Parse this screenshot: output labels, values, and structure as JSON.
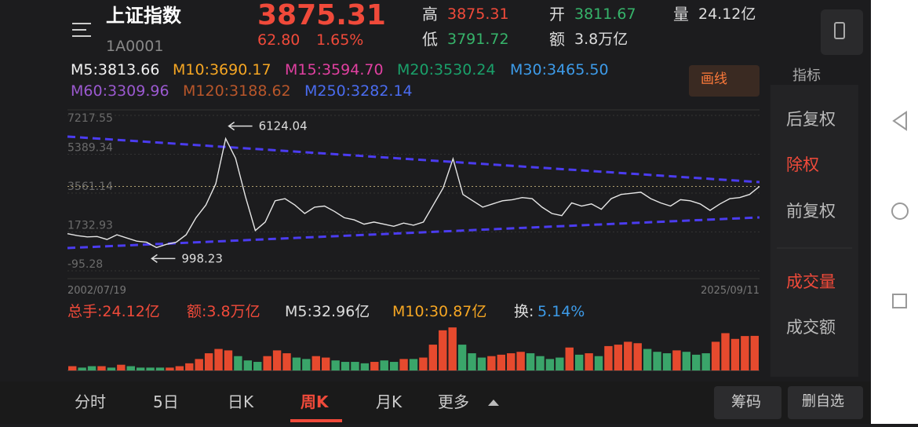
{
  "header": {
    "name": "上证指数",
    "code": "1A0001",
    "price": "3875.31",
    "change": "62.80",
    "change_pct": "1.65%",
    "high_label": "高",
    "high": "3875.31",
    "low_label": "低",
    "low": "3791.72",
    "open_label": "开",
    "open": "3811.67",
    "amount_label": "额",
    "amount": "3.8万亿",
    "volume_label": "量",
    "volume": "24.12亿"
  },
  "ma": [
    "M5:3813.66",
    "M10:3690.17",
    "M15:3594.70",
    "M20:3530.24",
    "M30:3465.50",
    "M60:3309.96",
    "M120:3188.62",
    "M250:3282.14"
  ],
  "draw_button": "画线",
  "indicator_button": "指标",
  "price_chart": {
    "type": "line",
    "ylim": [
      -95.28,
      7217.55
    ],
    "yticks": [
      7217.55,
      5389.34,
      3561.14,
      1732.93,
      -95.28
    ],
    "x_start": "2002/07/19",
    "x_end": "2025/09/11",
    "grid": true,
    "color": "#e6e6e6",
    "annotations": [
      {
        "text": "6124.04",
        "index": 16
      },
      {
        "text": "998.23",
        "index": 9
      }
    ],
    "values": [
      1650,
      1560,
      1500,
      1520,
      1380,
      1600,
      1450,
      1300,
      1250,
      998.23,
      1150,
      1250,
      1600,
      2400,
      3000,
      4000,
      6124.04,
      5200,
      3400,
      1800,
      2200,
      3200,
      3300,
      3000,
      2600,
      2900,
      2950,
      2700,
      2400,
      2300,
      2100,
      2200,
      2100,
      2000,
      2150,
      2050,
      2200,
      3000,
      3800,
      5178,
      3500,
      3200,
      2900,
      3050,
      3200,
      3250,
      3350,
      3300,
      2900,
      2600,
      2500,
      3100,
      2950,
      3050,
      2800,
      3300,
      3500,
      3550,
      3600,
      3300,
      3100,
      2950,
      3250,
      3200,
      3050,
      2750,
      3050,
      3300,
      3350,
      3500,
      3875.31
    ],
    "trendlines": {
      "color": "#4b3cf0",
      "values": [
        [
          6220,
          4078
        ],
        [
          976,
          2417
        ]
      ]
    },
    "last_price": 3875.31
  },
  "volume_header": [
    "总手:24.12亿",
    "额:3.8万亿",
    "M5:32.96亿",
    "M10:30.87亿",
    "换:",
    "5.14%"
  ],
  "volume_chart": {
    "type": "bar",
    "ylim": [
      0,
      35
    ],
    "values": [
      3,
      2,
      3,
      3,
      2,
      4,
      3,
      2,
      2,
      2,
      2,
      3,
      5,
      8,
      12,
      15,
      14,
      10,
      7,
      6,
      10,
      14,
      12,
      9,
      8,
      10,
      9,
      7,
      6,
      6,
      5,
      6,
      7,
      6,
      8,
      8,
      9,
      18,
      28,
      30,
      18,
      12,
      9,
      10,
      11,
      12,
      13,
      12,
      10,
      8,
      9,
      16,
      11,
      12,
      10,
      17,
      18,
      20,
      19,
      15,
      13,
      12,
      14,
      13,
      11,
      12,
      20,
      26,
      22,
      24,
      24.12
    ]
  },
  "side_menu": [
    "后复权",
    "除权",
    "前复权",
    "成交量",
    "成交额"
  ],
  "tabs": [
    "分时",
    "5日",
    "日K",
    "周K",
    "月K",
    "更多"
  ],
  "active_tab": 3,
  "buttons": [
    "筹码",
    "删自选"
  ]
}
